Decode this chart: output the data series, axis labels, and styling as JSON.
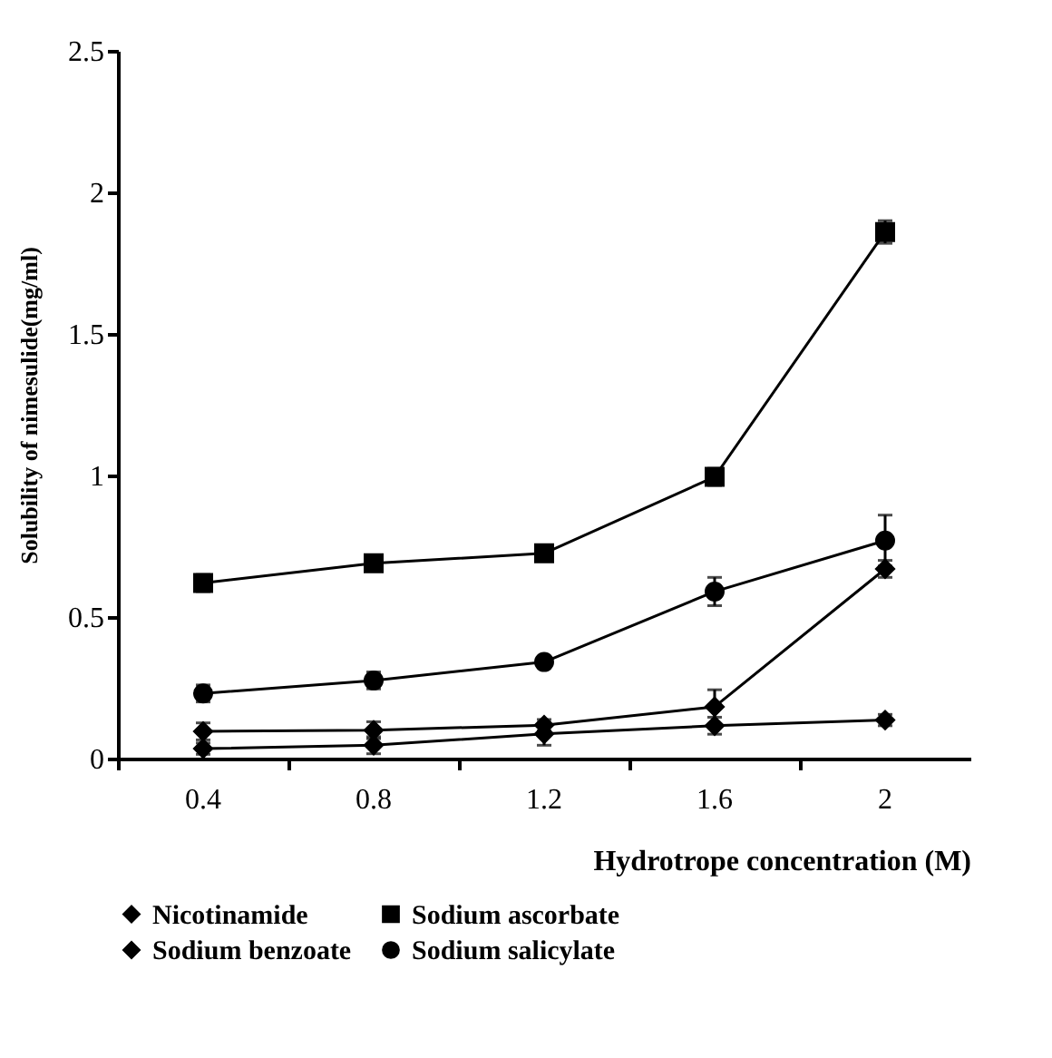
{
  "chart_data": {
    "type": "line",
    "xlabel": "Hydrotrope concentration (M)",
    "ylabel": "Solubility of nimesulide(mg/ml)",
    "categories": [
      "0.4",
      "0.8",
      "1.2",
      "1.6",
      "2"
    ],
    "ylim": [
      0,
      2.5
    ],
    "yticks": [
      0,
      0.5,
      1,
      1.5,
      2,
      2.5
    ],
    "grid": false,
    "legend": "bottom",
    "series": [
      {
        "name": "Nicotinamide",
        "color": "#000000",
        "marker": "diamond",
        "values": [
          0.035,
          0.047,
          0.087,
          0.116,
          0.136
        ],
        "errors": [
          0.02,
          0.03,
          0.04,
          0.03,
          0.02
        ]
      },
      {
        "name": "Sodium ascorbate",
        "color": "#000000",
        "marker": "square",
        "values": [
          0.62,
          0.69,
          0.725,
          0.995,
          1.86
        ],
        "errors": [
          0.03,
          0.02,
          0.02,
          0.03,
          0.04
        ]
      },
      {
        "name": "Sodium benzoate",
        "color": "#000000",
        "marker": "diamond",
        "values": [
          0.096,
          0.1,
          0.118,
          0.183,
          0.67
        ],
        "errors": [
          0.03,
          0.03,
          0.02,
          0.06,
          0.03
        ]
      },
      {
        "name": "Sodium salicylate",
        "color": "#000000",
        "marker": "circle",
        "values": [
          0.23,
          0.276,
          0.341,
          0.59,
          0.77
        ],
        "errors": [
          0.03,
          0.03,
          0.02,
          0.05,
          0.09
        ]
      }
    ]
  }
}
